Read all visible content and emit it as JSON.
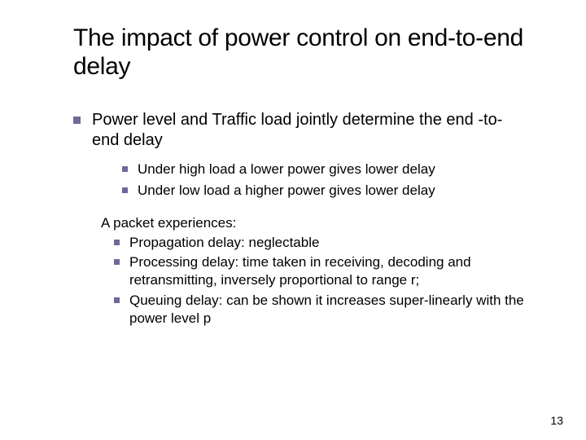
{
  "slide": {
    "title": "The impact of power control on end-to-end delay",
    "page_number": "13",
    "bullet_color": "#70689a",
    "title_fontsize": 30,
    "body_fontsize_l1": 20,
    "body_fontsize_l2": 17,
    "background_color": "#ffffff",
    "main": {
      "text": "Power level and Traffic load jointly determine the end -to-end delay",
      "sub": [
        "Under high load a lower power gives lower delay",
        "Under low load a higher power gives lower delay"
      ]
    },
    "packet": {
      "intro": "A packet experiences:",
      "items": [
        "Propagation delay: neglectable",
        "Processing delay: time taken in receiving, decoding and retransmitting, inversely proportional to range r;",
        "Queuing delay: can be shown it increases super-linearly with the power level p"
      ]
    }
  }
}
